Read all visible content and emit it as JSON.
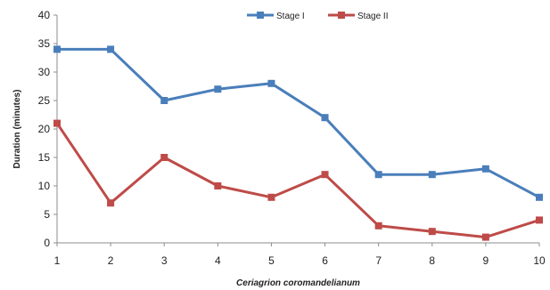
{
  "chart_data": {
    "type": "line",
    "title": "",
    "xlabel": "Ceriagrion coromandelianum",
    "ylabel": "Duration (minutes)",
    "x": [
      1,
      2,
      3,
      4,
      5,
      6,
      7,
      8,
      9,
      10
    ],
    "xlim": [
      1,
      10
    ],
    "ylim": [
      0,
      40
    ],
    "yticks": [
      0,
      5,
      10,
      15,
      20,
      25,
      30,
      35,
      40
    ],
    "grid": false,
    "legend_position": "top",
    "series": [
      {
        "name": "Stage I",
        "color": "#4A7EBB",
        "values": [
          34,
          34,
          25,
          27,
          28,
          22,
          12,
          12,
          13,
          8
        ]
      },
      {
        "name": "Stage II",
        "color": "#BE4B48",
        "values": [
          21,
          7,
          15,
          10,
          8,
          12,
          3,
          2,
          1,
          4
        ]
      }
    ]
  }
}
